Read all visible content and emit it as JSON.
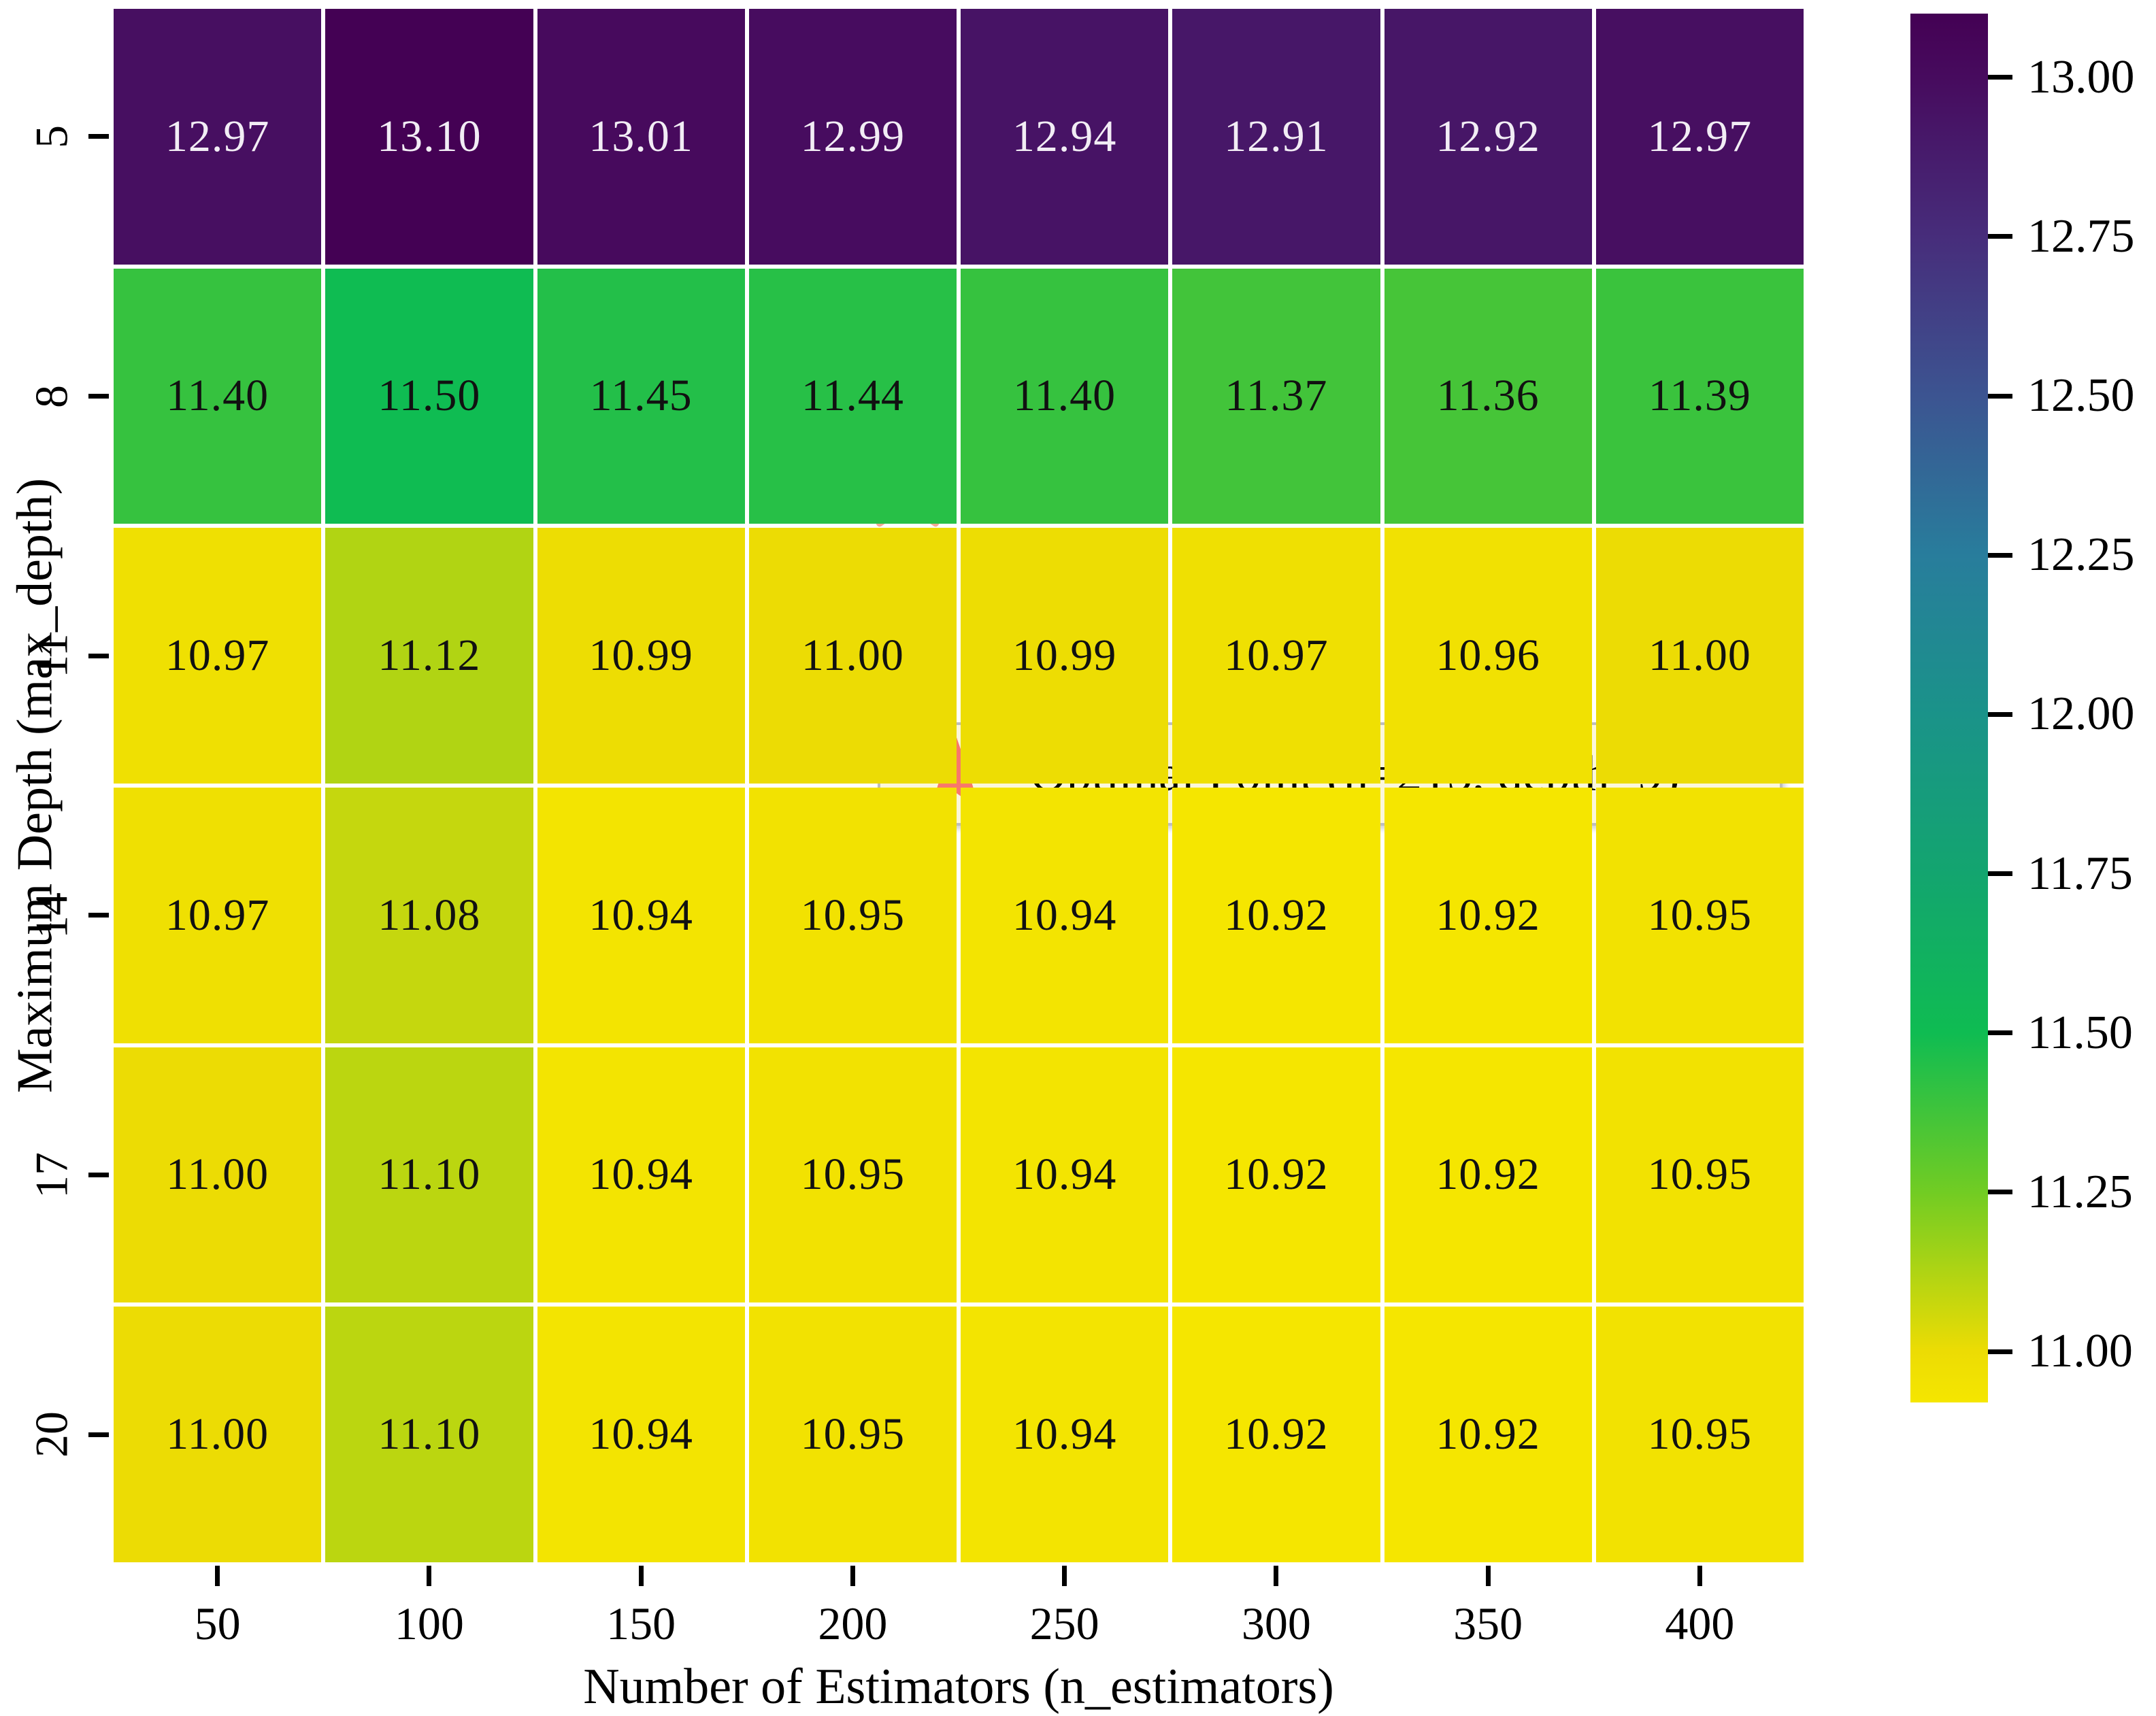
{
  "figure": {
    "xlabel": "Number of Estimators (n_estimators)",
    "ylabel": "Maximum Depth (max_depth)",
    "legend_label": "Optimal Point (n=213, depth=9)"
  },
  "chart_data": {
    "type": "heatmap",
    "title": "",
    "xlabel": "Number of Estimators (n_estimators)",
    "ylabel": "Maximum Depth (max_depth)",
    "x_categories": [
      50,
      100,
      150,
      200,
      250,
      300,
      350,
      400
    ],
    "y_categories": [
      5,
      8,
      11,
      14,
      17,
      20
    ],
    "values": [
      [
        12.97,
        13.1,
        13.01,
        12.99,
        12.94,
        12.91,
        12.92,
        12.97
      ],
      [
        11.4,
        11.5,
        11.45,
        11.44,
        11.4,
        11.37,
        11.36,
        11.39
      ],
      [
        10.97,
        11.12,
        10.99,
        11.0,
        10.99,
        10.97,
        10.96,
        11.0
      ],
      [
        10.97,
        11.08,
        10.94,
        10.95,
        10.94,
        10.92,
        10.92,
        10.95
      ],
      [
        11.0,
        11.1,
        10.94,
        10.95,
        10.94,
        10.92,
        10.92,
        10.95
      ],
      [
        11.0,
        11.1,
        10.94,
        10.95,
        10.94,
        10.92,
        10.92,
        10.95
      ]
    ],
    "value_decimals": 2,
    "vmin": 10.92,
    "vmax": 13.1,
    "grid_line_color": "#ffffff",
    "light_text_color": "#f2edf5",
    "dark_text_color": "#111111",
    "light_text_above_value": 12.0,
    "colorbar_tick_labels": [
      "13.00",
      "12.75",
      "12.50",
      "12.25",
      "12.00",
      "11.75",
      "11.50",
      "11.25",
      "11.00"
    ],
    "colorbar_tick_values": [
      13.0,
      12.75,
      12.5,
      12.25,
      12.0,
      11.75,
      11.5,
      11.25,
      11.0
    ],
    "colormap_stops": [
      {
        "t": 0.0,
        "color": "#440154"
      },
      {
        "t": 0.046,
        "color": "#470b5e"
      },
      {
        "t": 0.161,
        "color": "#472d7b"
      },
      {
        "t": 0.275,
        "color": "#3c5491"
      },
      {
        "t": 0.39,
        "color": "#287d9c"
      },
      {
        "t": 0.505,
        "color": "#1a9389"
      },
      {
        "t": 0.619,
        "color": "#13a56f"
      },
      {
        "t": 0.734,
        "color": "#0fbc52"
      },
      {
        "t": 0.849,
        "color": "#72cc23"
      },
      {
        "t": 0.963,
        "color": "#ecdc04"
      },
      {
        "t": 1.0,
        "color": "#f5e600"
      }
    ],
    "optimal_point": {
      "n_estimators": 213,
      "max_depth": 9
    },
    "optimal_marker": {
      "shape": "star",
      "fill": "#c8622f",
      "edge": "#f2a894"
    },
    "legend_marker": {
      "shape": "star",
      "fill": "#f8786b",
      "edge": "#f8786b"
    },
    "legend_position": "center-right"
  }
}
